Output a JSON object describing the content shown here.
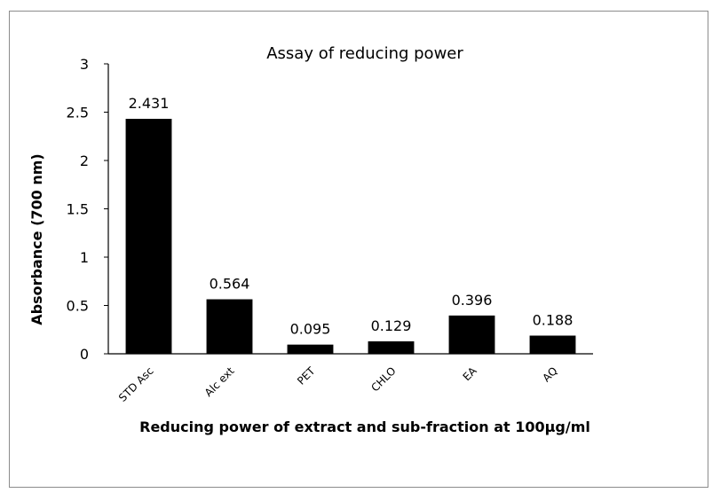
{
  "chart_data": {
    "type": "bar",
    "title": "Assay of reducing power",
    "xlabel": "Reducing power  of extract and sub-fraction at 100µg/ml",
    "ylabel": "Absorbance (700 nm)",
    "categories": [
      "STD Asc",
      "Alc ext",
      "PET",
      "CHLO",
      "EA",
      "AQ"
    ],
    "values": [
      2.431,
      0.564,
      0.095,
      0.129,
      0.396,
      0.188
    ],
    "data_labels": [
      "2.431",
      "0.564",
      "0.095",
      "0.129",
      "0.396",
      "0.188"
    ],
    "ylim": [
      0,
      3
    ],
    "yticks": [
      0,
      0.5,
      1,
      1.5,
      2,
      2.5,
      3
    ],
    "ytick_labels": [
      "0",
      "0.5",
      "1",
      "1.5",
      "2",
      "2.5",
      "3"
    ],
    "grid": false,
    "legend": "none",
    "bar_color": "#000000"
  }
}
